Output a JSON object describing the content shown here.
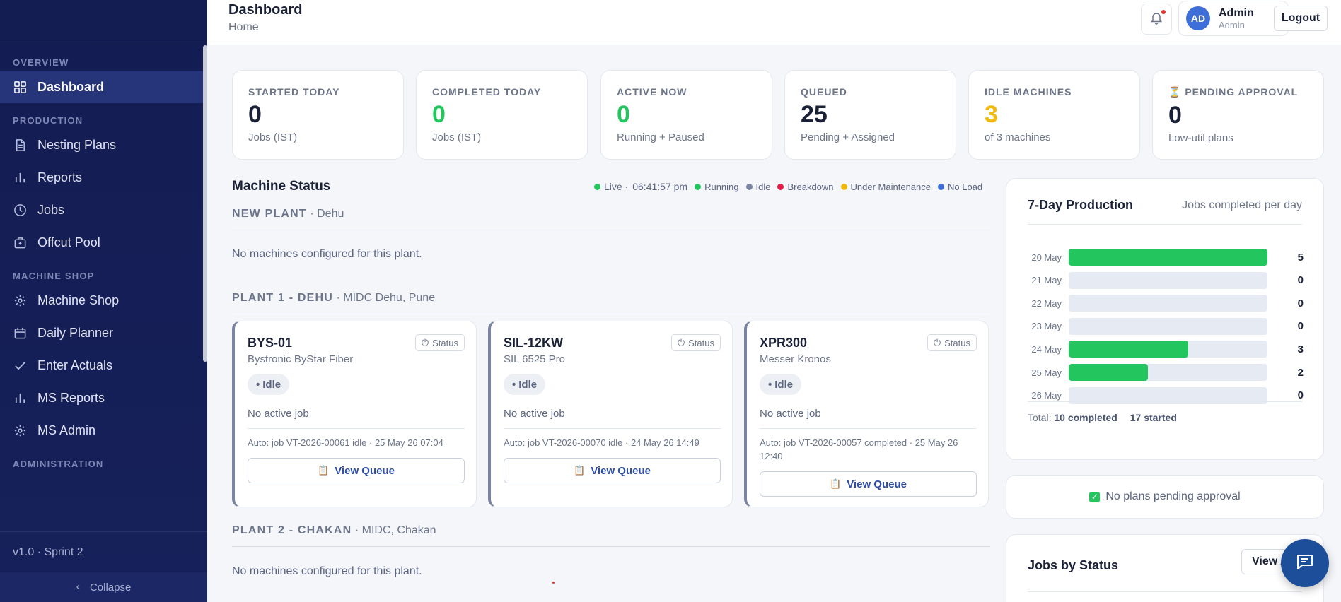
{
  "sidebar": {
    "sections": {
      "overview": "OVERVIEW",
      "production": "PRODUCTION",
      "machine_shop": "MACHINE SHOP",
      "administration": "ADMINISTRATION"
    },
    "items": {
      "dashboard": "Dashboard",
      "nesting_plans": "Nesting Plans",
      "reports": "Reports",
      "jobs": "Jobs",
      "offcut_pool": "Offcut Pool",
      "machine_shop": "Machine Shop",
      "daily_planner": "Daily Planner",
      "enter_actuals": "Enter Actuals",
      "ms_reports": "MS Reports",
      "ms_admin": "MS Admin"
    },
    "version": "v1.0 · Sprint 2",
    "collapse": "Collapse"
  },
  "header": {
    "title": "Dashboard",
    "breadcrumb": "Home",
    "user": {
      "initials": "AD",
      "name": "Admin",
      "role": "Admin"
    },
    "logout": "Logout"
  },
  "kpis": [
    {
      "label": "STARTED TODAY",
      "value": "0",
      "sub": "Jobs (IST)",
      "color": "#1a2136"
    },
    {
      "label": "COMPLETED TODAY",
      "value": "0",
      "sub": "Jobs (IST)",
      "color": "#22c55e"
    },
    {
      "label": "ACTIVE NOW",
      "value": "0",
      "sub": "Running + Paused",
      "color": "#22c55e"
    },
    {
      "label": "QUEUED",
      "value": "25",
      "sub": "Pending + Assigned",
      "color": "#1a2136"
    },
    {
      "label": "IDLE MACHINES",
      "value": "3",
      "sub": "of 3 machines",
      "color": "#f0b90b"
    },
    {
      "label": "⏳ PENDING APPROVAL",
      "value": "0",
      "sub": "Low-util plans",
      "color": "#1a2136"
    }
  ],
  "machine_status": {
    "title": "Machine Status",
    "live": "Live ·",
    "time": "06:41:57 pm",
    "legend": [
      {
        "label": "Running",
        "color": "#22c55e"
      },
      {
        "label": "Idle",
        "color": "#7a83a0"
      },
      {
        "label": "Breakdown",
        "color": "#e11d48"
      },
      {
        "label": "Under Maintenance",
        "color": "#f0b90b"
      },
      {
        "label": "No Load",
        "color": "#3e6ed8"
      }
    ],
    "plants": [
      {
        "name": "NEW PLANT",
        "location": " · Dehu",
        "empty": "No machines configured for this plant."
      },
      {
        "name": "PLANT 1 - DEHU",
        "location": " · MIDC Dehu, Pune"
      },
      {
        "name": "PLANT 2 - CHAKAN",
        "location": " · MIDC, Chakan",
        "empty": "No machines configured for this plant."
      }
    ],
    "machines": [
      {
        "name": "BYS-01",
        "model": "Bystronic ByStar Fiber",
        "status_btn": "Status",
        "state": "Idle",
        "job": "No active job",
        "auto": "Auto: job VT-2026-00061 idle · 25 May 26 07:04",
        "queue": "View Queue"
      },
      {
        "name": "SIL-12KW",
        "model": "SIL 6525 Pro",
        "status_btn": "Status",
        "state": "Idle",
        "job": "No active job",
        "auto": "Auto: job VT-2026-00070 idle · 24 May 26 14:49",
        "queue": "View Queue"
      },
      {
        "name": "XPR300",
        "model": "Messer Kronos",
        "status_btn": "Status",
        "state": "Idle",
        "job": "No active job",
        "auto": "Auto: job VT-2026-00057 completed · 25 May 26 12:40",
        "queue": "View Queue"
      }
    ]
  },
  "production": {
    "title": "7-Day Production",
    "subtitle": "Jobs completed per day",
    "total_label": "Total:",
    "completed": "10 completed",
    "started": "17 started"
  },
  "chart_data": {
    "type": "bar",
    "orientation": "horizontal",
    "title": "7-Day Production",
    "subtitle": "Jobs completed per day",
    "categories": [
      "20 May",
      "21 May",
      "22 May",
      "23 May",
      "24 May",
      "25 May",
      "26 May"
    ],
    "values": [
      5,
      0,
      0,
      0,
      3,
      2,
      0
    ],
    "xlim": [
      0,
      5
    ],
    "bar_color": "#22c55e"
  },
  "approval": {
    "text": "No plans pending approval",
    "check": "✓"
  },
  "jobs_by_status": {
    "title": "Jobs by Status",
    "view_label": "View All"
  }
}
